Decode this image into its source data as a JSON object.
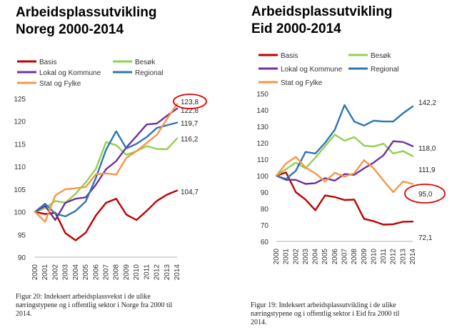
{
  "charts": [
    {
      "title_line1": "Arbeidsplassutvikling",
      "title_line2": "Noreg 2000-2014",
      "caption_line1": "Figur 20: Indeksert arbeidsplassvekst i de ulike",
      "caption_line2": "næringstypene og i offentlig sektor i Norge fra 2000 til",
      "caption_line3": "2014."
    },
    {
      "title_line1": "Arbeidsplassutvikling",
      "title_line2": "Eid 2000-2014",
      "caption_line1": "Figur 19: Indeksert arbeidsplassutvikling i de ulike",
      "caption_line2": "næringstypene og i offentlig sektor i Eid fra 2000 til",
      "caption_line3": "2014."
    }
  ],
  "chart_data": [
    {
      "type": "line",
      "title": "Arbeidsplassutvikling Noreg 2000-2014",
      "x": [
        "2000",
        "2001",
        "2002",
        "2003",
        "2004",
        "2005",
        "2006",
        "2007",
        "2008",
        "2009",
        "2010",
        "2011",
        "2012",
        "2013",
        "2014"
      ],
      "ylim": [
        90,
        125
      ],
      "yticks": [
        90,
        95,
        100,
        105,
        110,
        115,
        120,
        125
      ],
      "grid": false,
      "legend_position": "top",
      "series": [
        {
          "name": "Basis",
          "color": "#c00000",
          "values": [
            100,
            99.5,
            99.8,
            95.3,
            93.7,
            95.4,
            99.2,
            102.0,
            102.9,
            99.4,
            98.2,
            100.2,
            102.4,
            103.8,
            104.7
          ]
        },
        {
          "name": "Besøk",
          "color": "#92d050",
          "values": [
            100,
            100.8,
            102.4,
            102.0,
            104.0,
            106.5,
            109.5,
            115.4,
            114.7,
            112.6,
            113.4,
            114.5,
            113.9,
            113.8,
            116.2
          ]
        },
        {
          "name": "Lokal og Kommune",
          "color": "#7030a0",
          "values": [
            100,
            101.3,
            98.2,
            102.0,
            102.9,
            103.2,
            106.0,
            109.4,
            111.2,
            114.2,
            116.7,
            119.3,
            119.5,
            121.2,
            122.8
          ]
        },
        {
          "name": "Regional",
          "color": "#2e75b6",
          "values": [
            100,
            101.8,
            99.6,
            99.0,
            100.2,
            102.3,
            107.5,
            113.7,
            117.8,
            114.0,
            115.0,
            116.5,
            118.5,
            119.1,
            119.7
          ]
        },
        {
          "name": "Stat og Fylke",
          "color": "#f79646",
          "values": [
            100,
            97.8,
            103.6,
            105.0,
            105.2,
            105.5,
            108.3,
            108.5,
            108.2,
            111.9,
            113.4,
            115.2,
            117.0,
            120.5,
            123.8
          ]
        }
      ],
      "end_labels": [
        "104,7",
        "116,2",
        "122,8",
        "119,7",
        "123,8"
      ],
      "highlighted_label": "123,8"
    },
    {
      "type": "line",
      "title": "Arbeidsplassutvikling Eid 2000-2014",
      "x": [
        "2000",
        "2001",
        "2002",
        "2003",
        "2004",
        "2005",
        "2006",
        "2007",
        "2008",
        "2009",
        "2010",
        "2011",
        "2012",
        "2013",
        "2014"
      ],
      "ylim": [
        60,
        150
      ],
      "yticks": [
        60,
        70,
        80,
        90,
        100,
        110,
        120,
        130,
        140,
        150
      ],
      "grid": false,
      "legend_position": "top",
      "series": [
        {
          "name": "Basis",
          "color": "#c00000",
          "values": [
            100,
            102.0,
            90.0,
            85.5,
            79.0,
            88.0,
            87.0,
            85.2,
            85.5,
            73.8,
            72.3,
            70.2,
            70.5,
            72.0,
            72.1
          ]
        },
        {
          "name": "Besøk",
          "color": "#92d050",
          "values": [
            100,
            104.0,
            108.0,
            104.5,
            111.0,
            118.0,
            125.0,
            121.3,
            123.5,
            118.3,
            117.8,
            119.5,
            113.5,
            115.0,
            111.9
          ]
        },
        {
          "name": "Lokal og Kommune",
          "color": "#7030a0",
          "values": [
            100,
            97.5,
            97.5,
            95.0,
            95.5,
            98.5,
            97.0,
            101.0,
            100.5,
            104.5,
            108.0,
            112.5,
            121.0,
            120.5,
            118.0
          ]
        },
        {
          "name": "Regional",
          "color": "#2e75b6",
          "values": [
            100,
            98.0,
            103.0,
            114.5,
            113.5,
            120.0,
            128.0,
            143.0,
            133.0,
            130.5,
            133.5,
            133.0,
            133.0,
            138.0,
            142.2
          ]
        },
        {
          "name": "Stat og Fylke",
          "color": "#f79646",
          "values": [
            100,
            107.5,
            111.5,
            105.0,
            101.5,
            96.5,
            101.8,
            99.5,
            101.5,
            109.5,
            104.5,
            97.0,
            90.0,
            96.5,
            95.0
          ]
        }
      ],
      "end_labels": [
        "72,1",
        "111,9",
        "118,0",
        "142,2",
        "95,0"
      ],
      "highlighted_label": "95,0"
    }
  ]
}
